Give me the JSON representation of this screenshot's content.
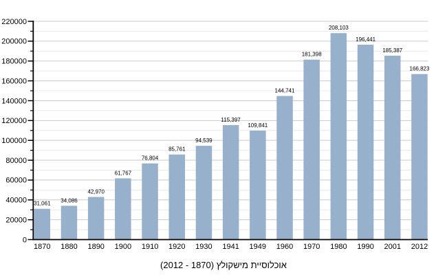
{
  "chart_data": {
    "type": "bar",
    "title": "אוכלוסיית מישקולץ (1870 - 2012)",
    "categories": [
      "1870",
      "1880",
      "1890",
      "1900",
      "1910",
      "1920",
      "1930",
      "1941",
      "1949",
      "1960",
      "1970",
      "1980",
      "1990",
      "2001",
      "2012"
    ],
    "values": [
      31061,
      34086,
      42970,
      61767,
      76804,
      85761,
      94539,
      115397,
      109841,
      144741,
      181398,
      208103,
      196441,
      185387,
      166823
    ],
    "value_labels": [
      "31,061",
      "34,086",
      "42,970",
      "61,767",
      "76,804",
      "85,761",
      "94,539",
      "115,397",
      "109,841",
      "144,741",
      "181,398",
      "208,103",
      "196,441",
      "185,387",
      "166,823"
    ],
    "y_tick_labels": [
      "0",
      "20000",
      "40000",
      "60000",
      "80000",
      "100000",
      "120000",
      "140000",
      "160000",
      "180000",
      "200000",
      "220000"
    ],
    "ylim": [
      0,
      220000
    ],
    "y_major_step": 20000,
    "y_minor_step": 10000,
    "grid": true,
    "legend": "none",
    "xlabel": "",
    "ylabel": "",
    "bar_color": "#97B1CD",
    "major_grid_color": "#c9c9c9",
    "minor_grid_color": "#e8e8e8",
    "axis_color": "#000000",
    "background_color": "#ffffff"
  }
}
